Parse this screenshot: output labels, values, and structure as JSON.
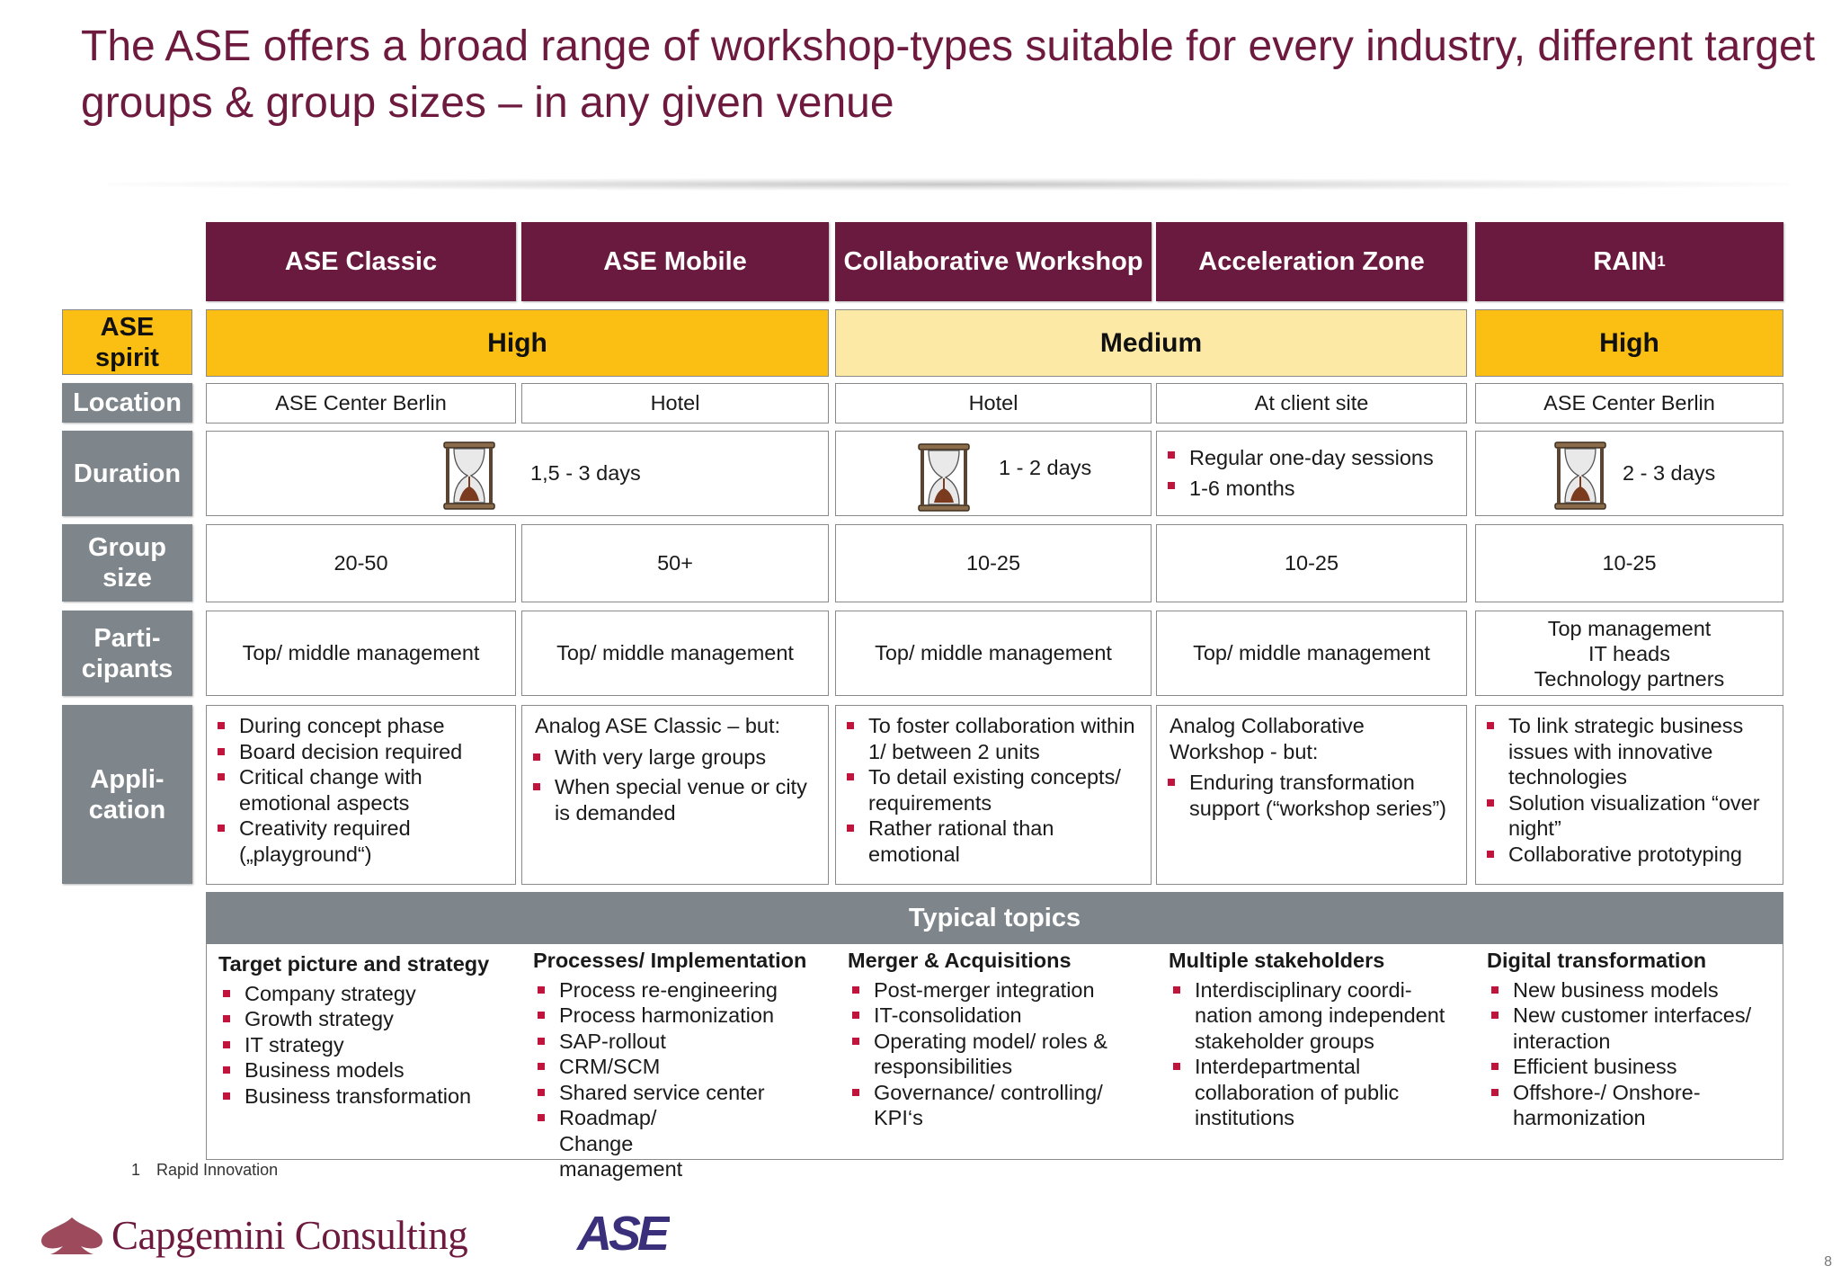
{
  "title": "The ASE offers a broad range of workshop-types suitable for every industry, different target groups & group sizes – in any given venue",
  "columns": [
    "ASE Classic",
    "ASE Mobile",
    "Collaborative Workshop",
    "Acceleration Zone",
    "RAIN"
  ],
  "rain_sup": "1",
  "row_labels": {
    "spirit": "ASE spirit",
    "location": "Location",
    "duration": "Duration",
    "group_size": "Group size",
    "participants": "Parti-cipants",
    "application": "Appli-cation"
  },
  "spirit": {
    "classic_mobile": "High",
    "collab_accel": "Medium",
    "rain": "High"
  },
  "spirit_colors": {
    "high": "#fbbe12",
    "medium": "#fde9a6"
  },
  "location": [
    "ASE Center Berlin",
    "Hotel",
    "Hotel",
    "At client site",
    "ASE Center Berlin"
  ],
  "duration": {
    "classic_mobile": "1,5 - 3 days",
    "collab": "1 - 2 days",
    "accel": [
      "Regular one-day sessions",
      "1-6 months"
    ],
    "rain": "2 - 3 days"
  },
  "group_size": [
    "20-50",
    "50+",
    "10-25",
    "10-25",
    "10-25"
  ],
  "participants": [
    "Top/ middle management",
    "Top/ middle management",
    "Top/ middle management",
    "Top/ middle management",
    [
      "Top management",
      "IT heads",
      "Technology partners"
    ]
  ],
  "application": {
    "classic": [
      "During concept phase",
      "Board decision required",
      "Critical change with emotional aspects",
      "Creativity required („playground“)"
    ],
    "mobile_intro": "Analog ASE Classic – but:",
    "mobile": [
      "With very large groups",
      "When special venue or city is demanded"
    ],
    "collab": [
      "To foster collaboration within 1/ between 2 units",
      "To detail existing concepts/ requirements",
      "Rather rational than emotional"
    ],
    "accel_intro": "Analog Collaborative Workshop - but:",
    "accel": [
      "Enduring transformation support (“workshop series”)"
    ],
    "rain": [
      "To link strategic business issues with innovative technologies",
      "Solution visualization “over night”",
      "Collaborative prototyping"
    ]
  },
  "topics_header": "Typical topics",
  "topics": [
    {
      "heading": "Target picture and strategy",
      "items": [
        "Company strategy",
        "Growth strategy",
        "IT strategy",
        "Business models",
        "Business transformation"
      ]
    },
    {
      "heading": "Processes/ Implementation",
      "items": [
        "Process re-engineering",
        "Process harmonization",
        "SAP-rollout",
        "CRM/SCM",
        "Shared service center",
        "Roadmap/ Change management"
      ]
    },
    {
      "heading": "Merger & Acquisitions",
      "items": [
        "Post-merger integration",
        "IT-consolidation",
        "Operating model/ roles & responsibilities",
        "Governance/ controlling/ KPI‘s"
      ]
    },
    {
      "heading": "Multiple stakeholders",
      "items": [
        "Interdisciplinary coordi-nation among independent stakeholder groups",
        "Interdepartmental collaboration of public institutions"
      ]
    },
    {
      "heading": "Digital transformation",
      "items": [
        "New business models",
        "New customer interfaces/ interaction",
        "Efficient business",
        "Offshore-/ Onshore-harmonization"
      ]
    }
  ],
  "footnote": {
    "num": "1",
    "text": "Rapid Innovation"
  },
  "logo_text": "Capgemini Consulting",
  "ase_logo_text": "ASE",
  "page_number": "8",
  "colors": {
    "header": "#6b1a3f",
    "row_label": "#7f868b",
    "bullet": "#c0143c",
    "title": "#6d1a3e"
  }
}
